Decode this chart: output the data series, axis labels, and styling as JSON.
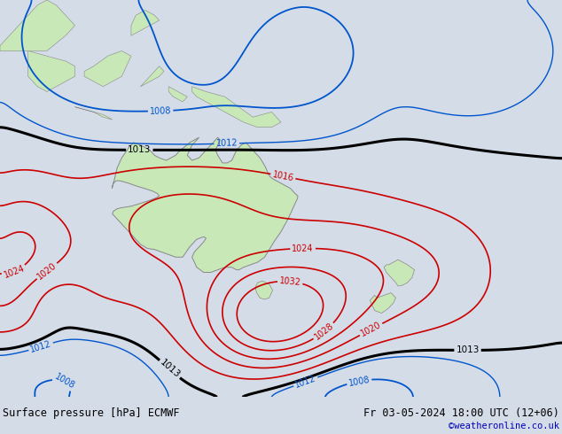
{
  "title_left": "Surface pressure [hPa] ECMWF",
  "title_right": "Fr 03-05-2024 18:00 UTC (12+06)",
  "credit": "©weatheronline.co.uk",
  "background_color": "#d4dce8",
  "land_color": "#c8e8b8",
  "land_edge_color": "#888888",
  "fig_width": 6.34,
  "fig_height": 4.9,
  "dpi": 100,
  "bottom_bar_height": 0.085,
  "bottom_bar_color": "#e0e0e0",
  "title_color": "#000000",
  "credit_color": "#0000bb",
  "lon_min": 90,
  "lon_max": 210,
  "lat_min": -63,
  "lat_max": 15
}
